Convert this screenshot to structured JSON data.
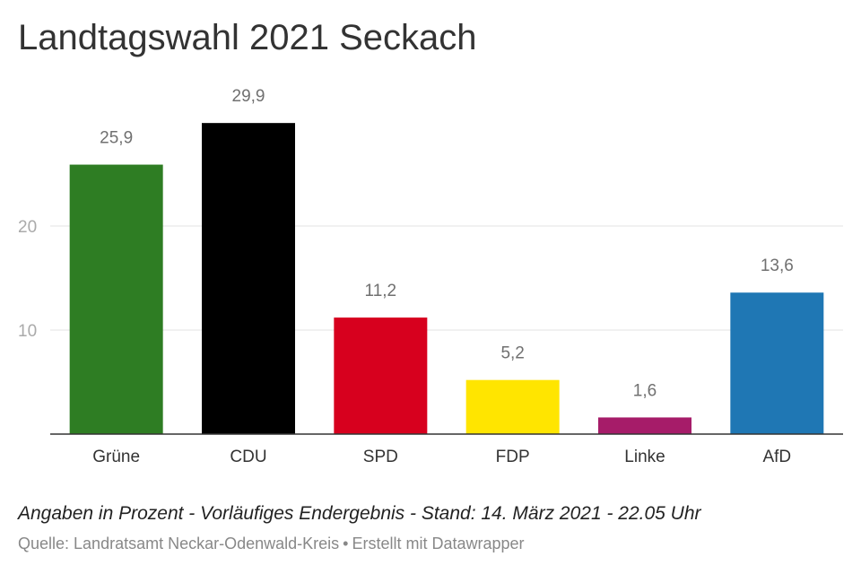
{
  "chart_data": {
    "type": "bar",
    "title": "Landtagswahl 2021 Seckach",
    "categories": [
      "Grüne",
      "CDU",
      "SPD",
      "FDP",
      "Linke",
      "AfD"
    ],
    "values": [
      25.9,
      29.9,
      11.2,
      5.2,
      1.6,
      13.6
    ],
    "value_labels": [
      "25,9",
      "29,9",
      "11,2",
      "5,2",
      "1,6",
      "13,6"
    ],
    "colors": [
      "#2e7d23",
      "#000000",
      "#d7001e",
      "#ffe500",
      "#a61c69",
      "#1f77b4"
    ],
    "yticks": [
      10,
      20
    ],
    "ytick_labels": [
      "10",
      "20"
    ],
    "ylim": [
      0,
      33
    ],
    "xlabel": "",
    "ylabel": "",
    "grid": true,
    "legend": "none"
  },
  "notes": "Angaben in Prozent - Vorläufiges Endergebnis - Stand: 14. März 2021 - 22.05 Uhr",
  "source": {
    "label": "Quelle: Landratsamt Neckar-Odenwald-Kreis",
    "separator": "•",
    "credit": "Erstellt mit Datawrapper"
  }
}
